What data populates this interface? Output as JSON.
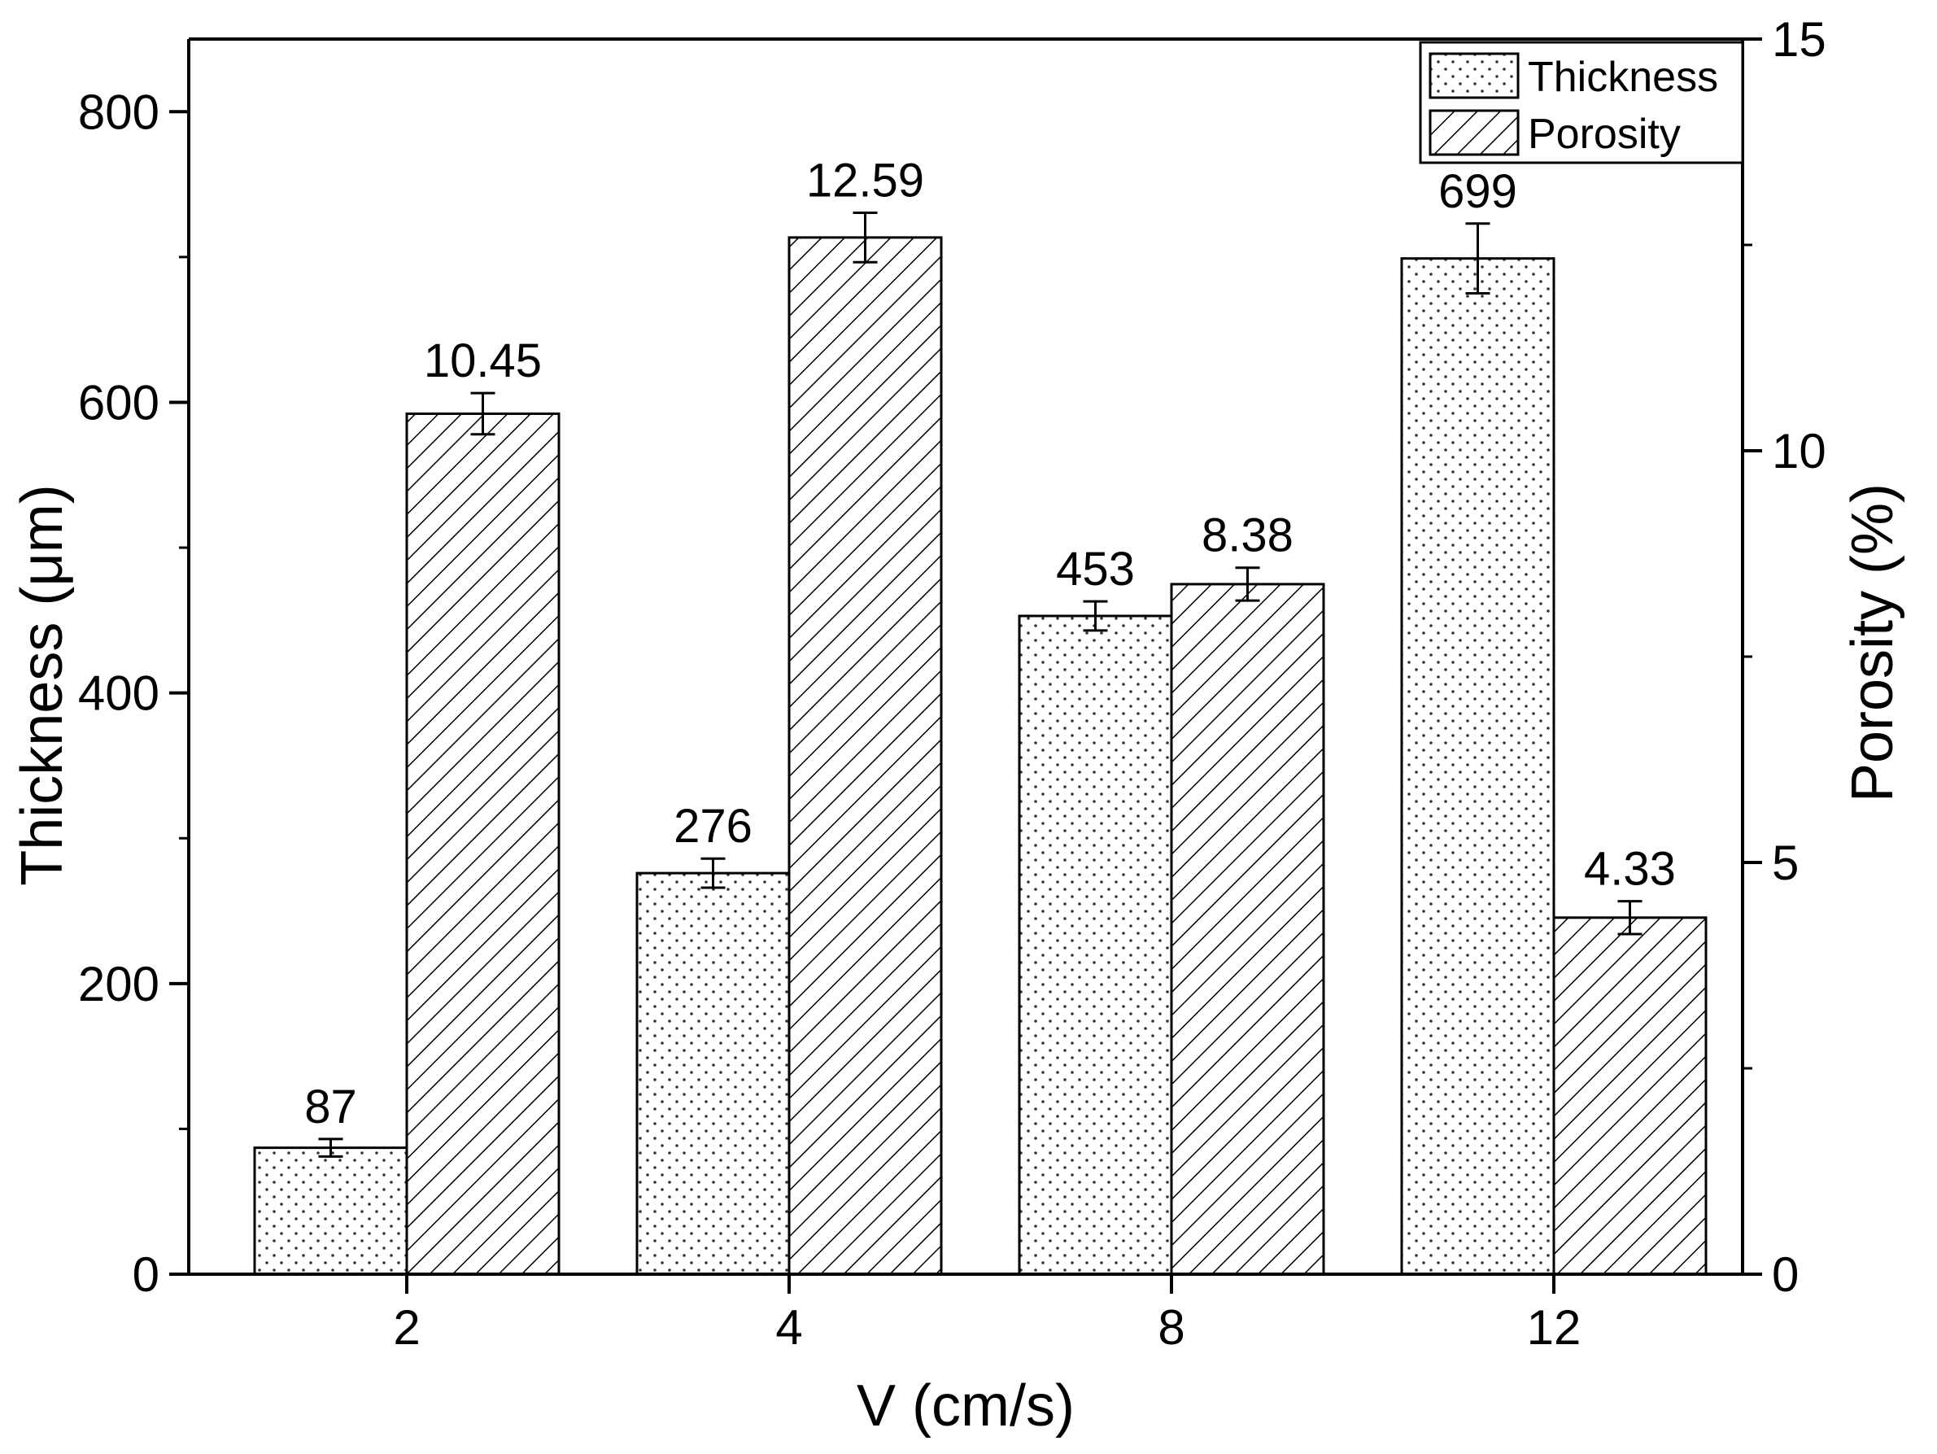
{
  "chart_data": {
    "type": "bar",
    "categories": [
      "2",
      "4",
      "8",
      "12"
    ],
    "xlabel": "V (cm/s)",
    "ylabel_left": "Thickness (μm)",
    "ylabel_right": "Porosity (%)",
    "y_left": {
      "lim": [
        0,
        850
      ],
      "ticks": [
        0,
        200,
        400,
        600,
        800
      ]
    },
    "y_right": {
      "lim": [
        0,
        15
      ],
      "ticks": [
        0,
        5,
        10,
        15
      ]
    },
    "legend_position": "top-right",
    "grid": false,
    "series": [
      {
        "name": "Thickness",
        "axis": "left",
        "pattern": "dots",
        "values": [
          87,
          276,
          453,
          699
        ],
        "labels": [
          "87",
          "276",
          "453",
          "699"
        ],
        "errors": [
          6,
          10,
          10,
          24
        ]
      },
      {
        "name": "Porosity",
        "axis": "right",
        "pattern": "hatch",
        "values": [
          10.45,
          12.59,
          8.38,
          4.33
        ],
        "labels": [
          "10.45",
          "12.59",
          "8.38",
          "4.33"
        ],
        "errors": [
          0.25,
          0.3,
          0.2,
          0.2
        ]
      }
    ]
  }
}
